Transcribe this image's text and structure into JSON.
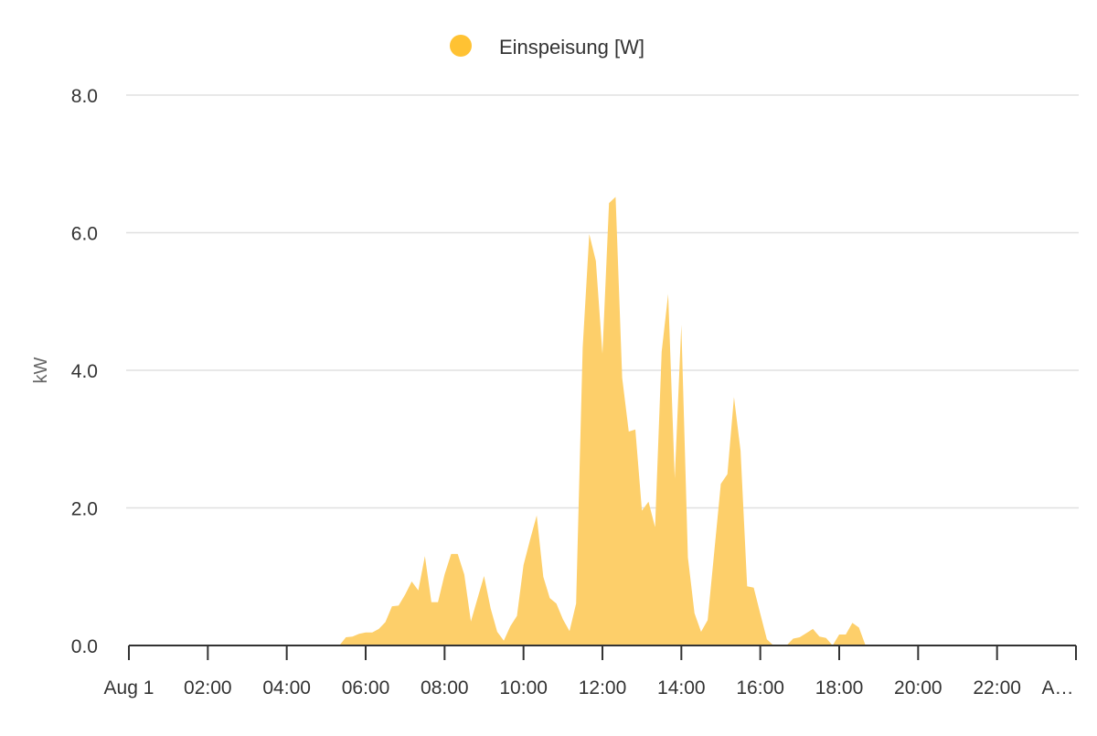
{
  "chart_data": {
    "type": "area",
    "title": "",
    "xlabel": "",
    "ylabel": "kW",
    "ylim": [
      0,
      8
    ],
    "yticks": [
      "0.0",
      "2.0",
      "4.0",
      "6.0",
      "8.0"
    ],
    "xticks": [
      "Aug 1",
      "02:00",
      "04:00",
      "06:00",
      "08:00",
      "10:00",
      "12:00",
      "14:00",
      "16:00",
      "18:00",
      "20:00",
      "22:00",
      "A…"
    ],
    "xrange": [
      "Aug 1 00:00",
      "Aug 2 00:00"
    ],
    "grid": true,
    "legend_position": "top-center",
    "series": [
      {
        "name": "Einspeisung [W]",
        "color": "#FFC233",
        "fill_color": "#FDCF6A",
        "x": [
          "00:00",
          "05:20",
          "05:30",
          "05:40",
          "05:50",
          "06:00",
          "06:10",
          "06:20",
          "06:30",
          "06:40",
          "06:50",
          "07:00",
          "07:10",
          "07:20",
          "07:30",
          "07:40",
          "07:50",
          "08:00",
          "08:10",
          "08:20",
          "08:30",
          "08:40",
          "08:50",
          "09:00",
          "09:10",
          "09:20",
          "09:30",
          "09:40",
          "09:50",
          "10:00",
          "10:10",
          "10:20",
          "10:30",
          "10:40",
          "10:50",
          "11:00",
          "11:10",
          "11:20",
          "11:30",
          "11:40",
          "11:50",
          "12:00",
          "12:10",
          "12:20",
          "12:30",
          "12:40",
          "12:50",
          "13:00",
          "13:10",
          "13:20",
          "13:30",
          "13:40",
          "13:50",
          "14:00",
          "14:10",
          "14:20",
          "14:30",
          "14:40",
          "14:50",
          "15:00",
          "15:10",
          "15:20",
          "15:30",
          "15:40",
          "15:50",
          "16:00",
          "16:10",
          "16:20",
          "16:30",
          "16:40",
          "16:50",
          "17:00",
          "17:10",
          "17:20",
          "17:30",
          "17:40",
          "17:50",
          "18:00",
          "18:10",
          "18:20",
          "18:30",
          "18:40",
          "24:00"
        ],
        "values": [
          0,
          0,
          0.12,
          0.13,
          0.17,
          0.19,
          0.19,
          0.24,
          0.34,
          0.57,
          0.58,
          0.74,
          0.93,
          0.8,
          1.3,
          0.63,
          0.63,
          1.03,
          1.33,
          1.33,
          1.03,
          0.35,
          0.68,
          1.01,
          0.54,
          0.2,
          0.07,
          0.28,
          0.43,
          1.17,
          1.54,
          1.89,
          1.0,
          0.69,
          0.61,
          0.38,
          0.21,
          0.61,
          4.33,
          5.98,
          5.59,
          4.24,
          6.43,
          6.52,
          3.89,
          3.11,
          3.14,
          1.96,
          2.09,
          1.72,
          4.27,
          5.11,
          2.43,
          4.66,
          1.28,
          0.47,
          0.2,
          0.37,
          1.36,
          2.35,
          2.49,
          3.61,
          2.83,
          0.86,
          0.84,
          0.46,
          0.09,
          0,
          0,
          0,
          0.1,
          0.12,
          0.18,
          0.24,
          0.13,
          0.11,
          0,
          0.16,
          0.16,
          0.33,
          0.26,
          0,
          0
        ]
      }
    ]
  }
}
